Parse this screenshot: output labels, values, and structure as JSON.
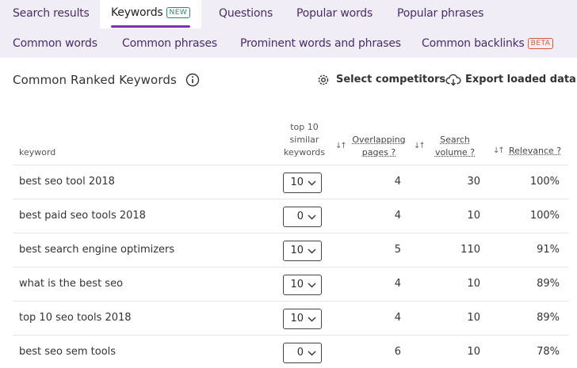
{
  "tabs_row1": [
    {
      "label": "Search results"
    },
    {
      "label": "Keywords",
      "badge": "NEW",
      "active": true
    },
    {
      "label": "Questions"
    },
    {
      "label": "Popular words"
    },
    {
      "label": "Popular phrases"
    }
  ],
  "tabs_row2": [
    {
      "label": "Common words"
    },
    {
      "label": "Common phrases"
    },
    {
      "label": "Prominent words and phrases"
    },
    {
      "label": "Common backlinks",
      "badge": "BETA"
    }
  ],
  "section": {
    "title": "Common Ranked Keywords",
    "info_icon": "info-circle-icon",
    "select_competitors": "Select competitors",
    "export": "Export loaded data"
  },
  "table": {
    "headers": {
      "keyword": "keyword",
      "top10": [
        "top 10",
        "similar",
        "keywords"
      ],
      "overlapping": [
        "Overlapping",
        "pages ?"
      ],
      "volume": [
        "Search",
        "volume ?"
      ],
      "relevance": "Relevance ?"
    },
    "sort_glyph": "↓↑",
    "rows": [
      {
        "keyword": "best seo tool 2018",
        "top10": "10",
        "overlapping": "4",
        "volume": "30",
        "relevance": "100%"
      },
      {
        "keyword": "best paid seo tools 2018",
        "top10": "0",
        "overlapping": "4",
        "volume": "10",
        "relevance": "100%"
      },
      {
        "keyword": "best search engine optimizers",
        "top10": "10",
        "overlapping": "5",
        "volume": "110",
        "relevance": "91%"
      },
      {
        "keyword": "what is the best seo",
        "top10": "10",
        "overlapping": "4",
        "volume": "10",
        "relevance": "89%"
      },
      {
        "keyword": "top 10 seo tools 2018",
        "top10": "10",
        "overlapping": "4",
        "volume": "10",
        "relevance": "89%"
      },
      {
        "keyword": "best seo sem tools",
        "top10": "0",
        "overlapping": "6",
        "volume": "10",
        "relevance": "78%"
      }
    ]
  },
  "colors": {
    "accent": "#7a2fb8",
    "nav_bg": "#f1edf6",
    "tab_text": "#4a2c6e",
    "badge_new": "#2a8a6a",
    "badge_beta": "#d25b3a"
  }
}
